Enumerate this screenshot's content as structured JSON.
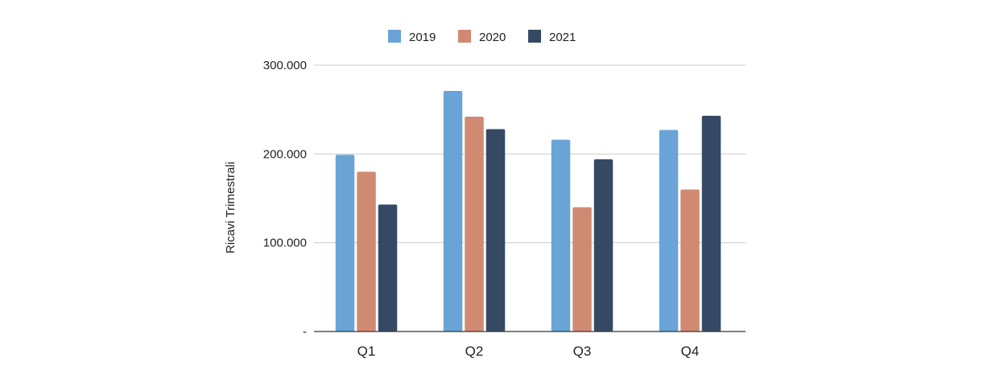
{
  "chart_data": {
    "type": "bar",
    "categories": [
      "Q1",
      "Q2",
      "Q3",
      "Q4"
    ],
    "series": [
      {
        "name": "2019",
        "color": "#6aa4d6",
        "values": [
          199000,
          271000,
          216000,
          227000
        ]
      },
      {
        "name": "2020",
        "color": "#d18a72",
        "values": [
          180000,
          242000,
          140000,
          160000
        ]
      },
      {
        "name": "2021",
        "color": "#354965",
        "values": [
          143000,
          228000,
          194000,
          243000
        ]
      }
    ],
    "ylabel": "Ricavi Trimestrali",
    "ylim": [
      0,
      300000
    ],
    "yticks": [
      {
        "value": 0,
        "label": "-"
      },
      {
        "value": 100000,
        "label": "100.000"
      },
      {
        "value": 200000,
        "label": "200.000"
      },
      {
        "value": 300000,
        "label": "300.000"
      }
    ],
    "grid": true,
    "legend_position": "top"
  }
}
